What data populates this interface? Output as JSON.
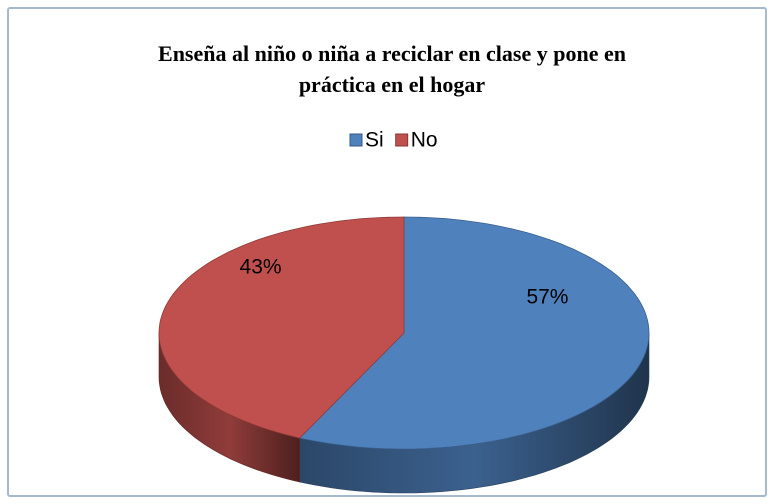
{
  "chart_data": {
    "type": "pie3d",
    "title": "Enseña al niño o niña a reciclar en clase y pone en práctica en el hogar",
    "categories": [
      "Si",
      "No"
    ],
    "values": [
      57,
      43
    ],
    "value_labels": [
      "57%",
      "43%"
    ],
    "colors": [
      "#4f81bd",
      "#c0504d"
    ],
    "legend": "top"
  }
}
